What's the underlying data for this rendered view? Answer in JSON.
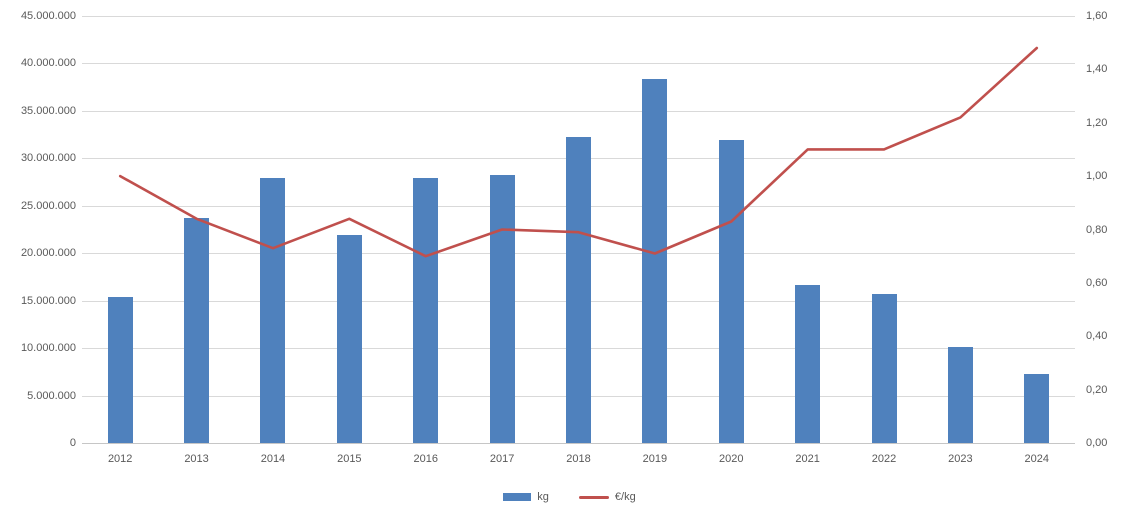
{
  "chart_data": {
    "type": "bar",
    "subtype": "combo-bar-line",
    "title": "",
    "categories": [
      "2012",
      "2013",
      "2014",
      "2015",
      "2016",
      "2017",
      "2018",
      "2019",
      "2020",
      "2021",
      "2022",
      "2023",
      "2024"
    ],
    "series": [
      {
        "name": "kg",
        "type": "bar",
        "axis": "left",
        "color": "#4F81BD",
        "values": [
          15400000,
          23700000,
          27900000,
          21900000,
          27900000,
          28200000,
          32200000,
          38400000,
          31900000,
          16700000,
          15700000,
          10100000,
          7300000
        ]
      },
      {
        "name": "€/kg",
        "type": "line",
        "axis": "right",
        "color": "#C0504D",
        "values": [
          1.0,
          0.84,
          0.73,
          0.84,
          0.7,
          0.8,
          0.79,
          0.71,
          0.83,
          1.1,
          1.1,
          1.22,
          1.48
        ]
      }
    ],
    "left_axis": {
      "min": 0,
      "max": 45000000,
      "step": 5000000,
      "tick_labels_top_to_bottom": [
        "45.000.000",
        "40.000.000",
        "35.000.000",
        "30.000.000",
        "25.000.000",
        "20.000.000",
        "15.000.000",
        "10.000.000",
        "5.000.000",
        "0"
      ]
    },
    "right_axis": {
      "min": 0.0,
      "max": 1.6,
      "step": 0.2,
      "tick_labels_top_to_bottom": [
        "1,60",
        "1,40",
        "1,20",
        "1,00",
        "0,80",
        "0,60",
        "0,40",
        "0,20",
        "0,00"
      ]
    },
    "grid": true,
    "legend_position": "bottom",
    "legend": [
      {
        "label": "kg",
        "swatch": "bar-swatch-icon",
        "color": "#4F81BD"
      },
      {
        "label": "€/kg",
        "swatch": "line-swatch-icon",
        "color": "#C0504D"
      }
    ]
  },
  "colors": {
    "bar": "#4F81BD",
    "line": "#C0504D",
    "grid": "#D9D9D9",
    "axis_text": "#595959",
    "background": "#FFFFFF"
  }
}
